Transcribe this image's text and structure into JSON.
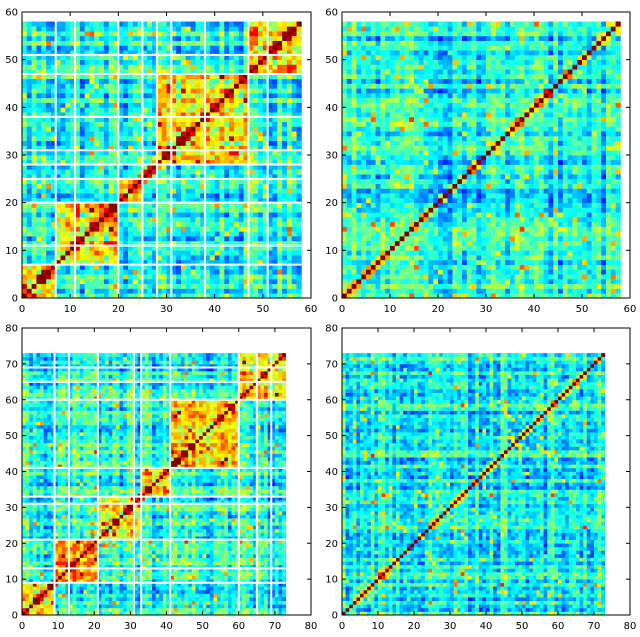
{
  "chart_data": [
    {
      "type": "heatmap",
      "panel": "top-left",
      "n": 58,
      "xlim": [
        0,
        60
      ],
      "ylim": [
        0,
        60
      ],
      "xticks": [
        "0",
        "10",
        "20",
        "30",
        "40",
        "50",
        "60"
      ],
      "yticks": [
        "0",
        "10",
        "20",
        "30",
        "40",
        "50",
        "60"
      ],
      "blocks": [
        0,
        7,
        20,
        25,
        28,
        47,
        58
      ],
      "separators": [
        7,
        11,
        20,
        25,
        28,
        31,
        38,
        47,
        51
      ],
      "diagonal_value": 1.0,
      "colormap": "jet",
      "grid": false
    },
    {
      "type": "heatmap",
      "panel": "top-right",
      "n": 58,
      "xlim": [
        0,
        60
      ],
      "ylim": [
        0,
        60
      ],
      "xticks": [
        "0",
        "10",
        "20",
        "30",
        "40",
        "50",
        "60"
      ],
      "yticks": [
        "0",
        "10",
        "20",
        "30",
        "40",
        "50",
        "60"
      ],
      "blocks": [
        0,
        58
      ],
      "separators": [],
      "diagonal_value": 1.0,
      "colormap": "jet",
      "grid": false
    },
    {
      "type": "heatmap",
      "panel": "bottom-left",
      "n": 73,
      "xlim": [
        0,
        80
      ],
      "ylim": [
        0,
        80
      ],
      "xticks": [
        "0",
        "10",
        "20",
        "30",
        "40",
        "50",
        "60",
        "70",
        "80"
      ],
      "yticks": [
        "0",
        "10",
        "20",
        "30",
        "40",
        "50",
        "60",
        "70",
        "80"
      ],
      "blocks": [
        0,
        9,
        21,
        33,
        41,
        60,
        73
      ],
      "separators": [
        9,
        13,
        21,
        31,
        33,
        41,
        60,
        65,
        69
      ],
      "diagonal_value": 1.0,
      "colormap": "jet",
      "grid": false
    },
    {
      "type": "heatmap",
      "panel": "bottom-right",
      "n": 73,
      "xlim": [
        0,
        80
      ],
      "ylim": [
        0,
        80
      ],
      "xticks": [
        "0",
        "10",
        "20",
        "30",
        "40",
        "50",
        "60",
        "70",
        "80"
      ],
      "yticks": [
        "0",
        "10",
        "20",
        "30",
        "40",
        "50",
        "60",
        "70",
        "80"
      ],
      "blocks": [
        0,
        73
      ],
      "separators": [],
      "diagonal_value": 1.0,
      "colormap": "jet",
      "grid": false
    }
  ]
}
